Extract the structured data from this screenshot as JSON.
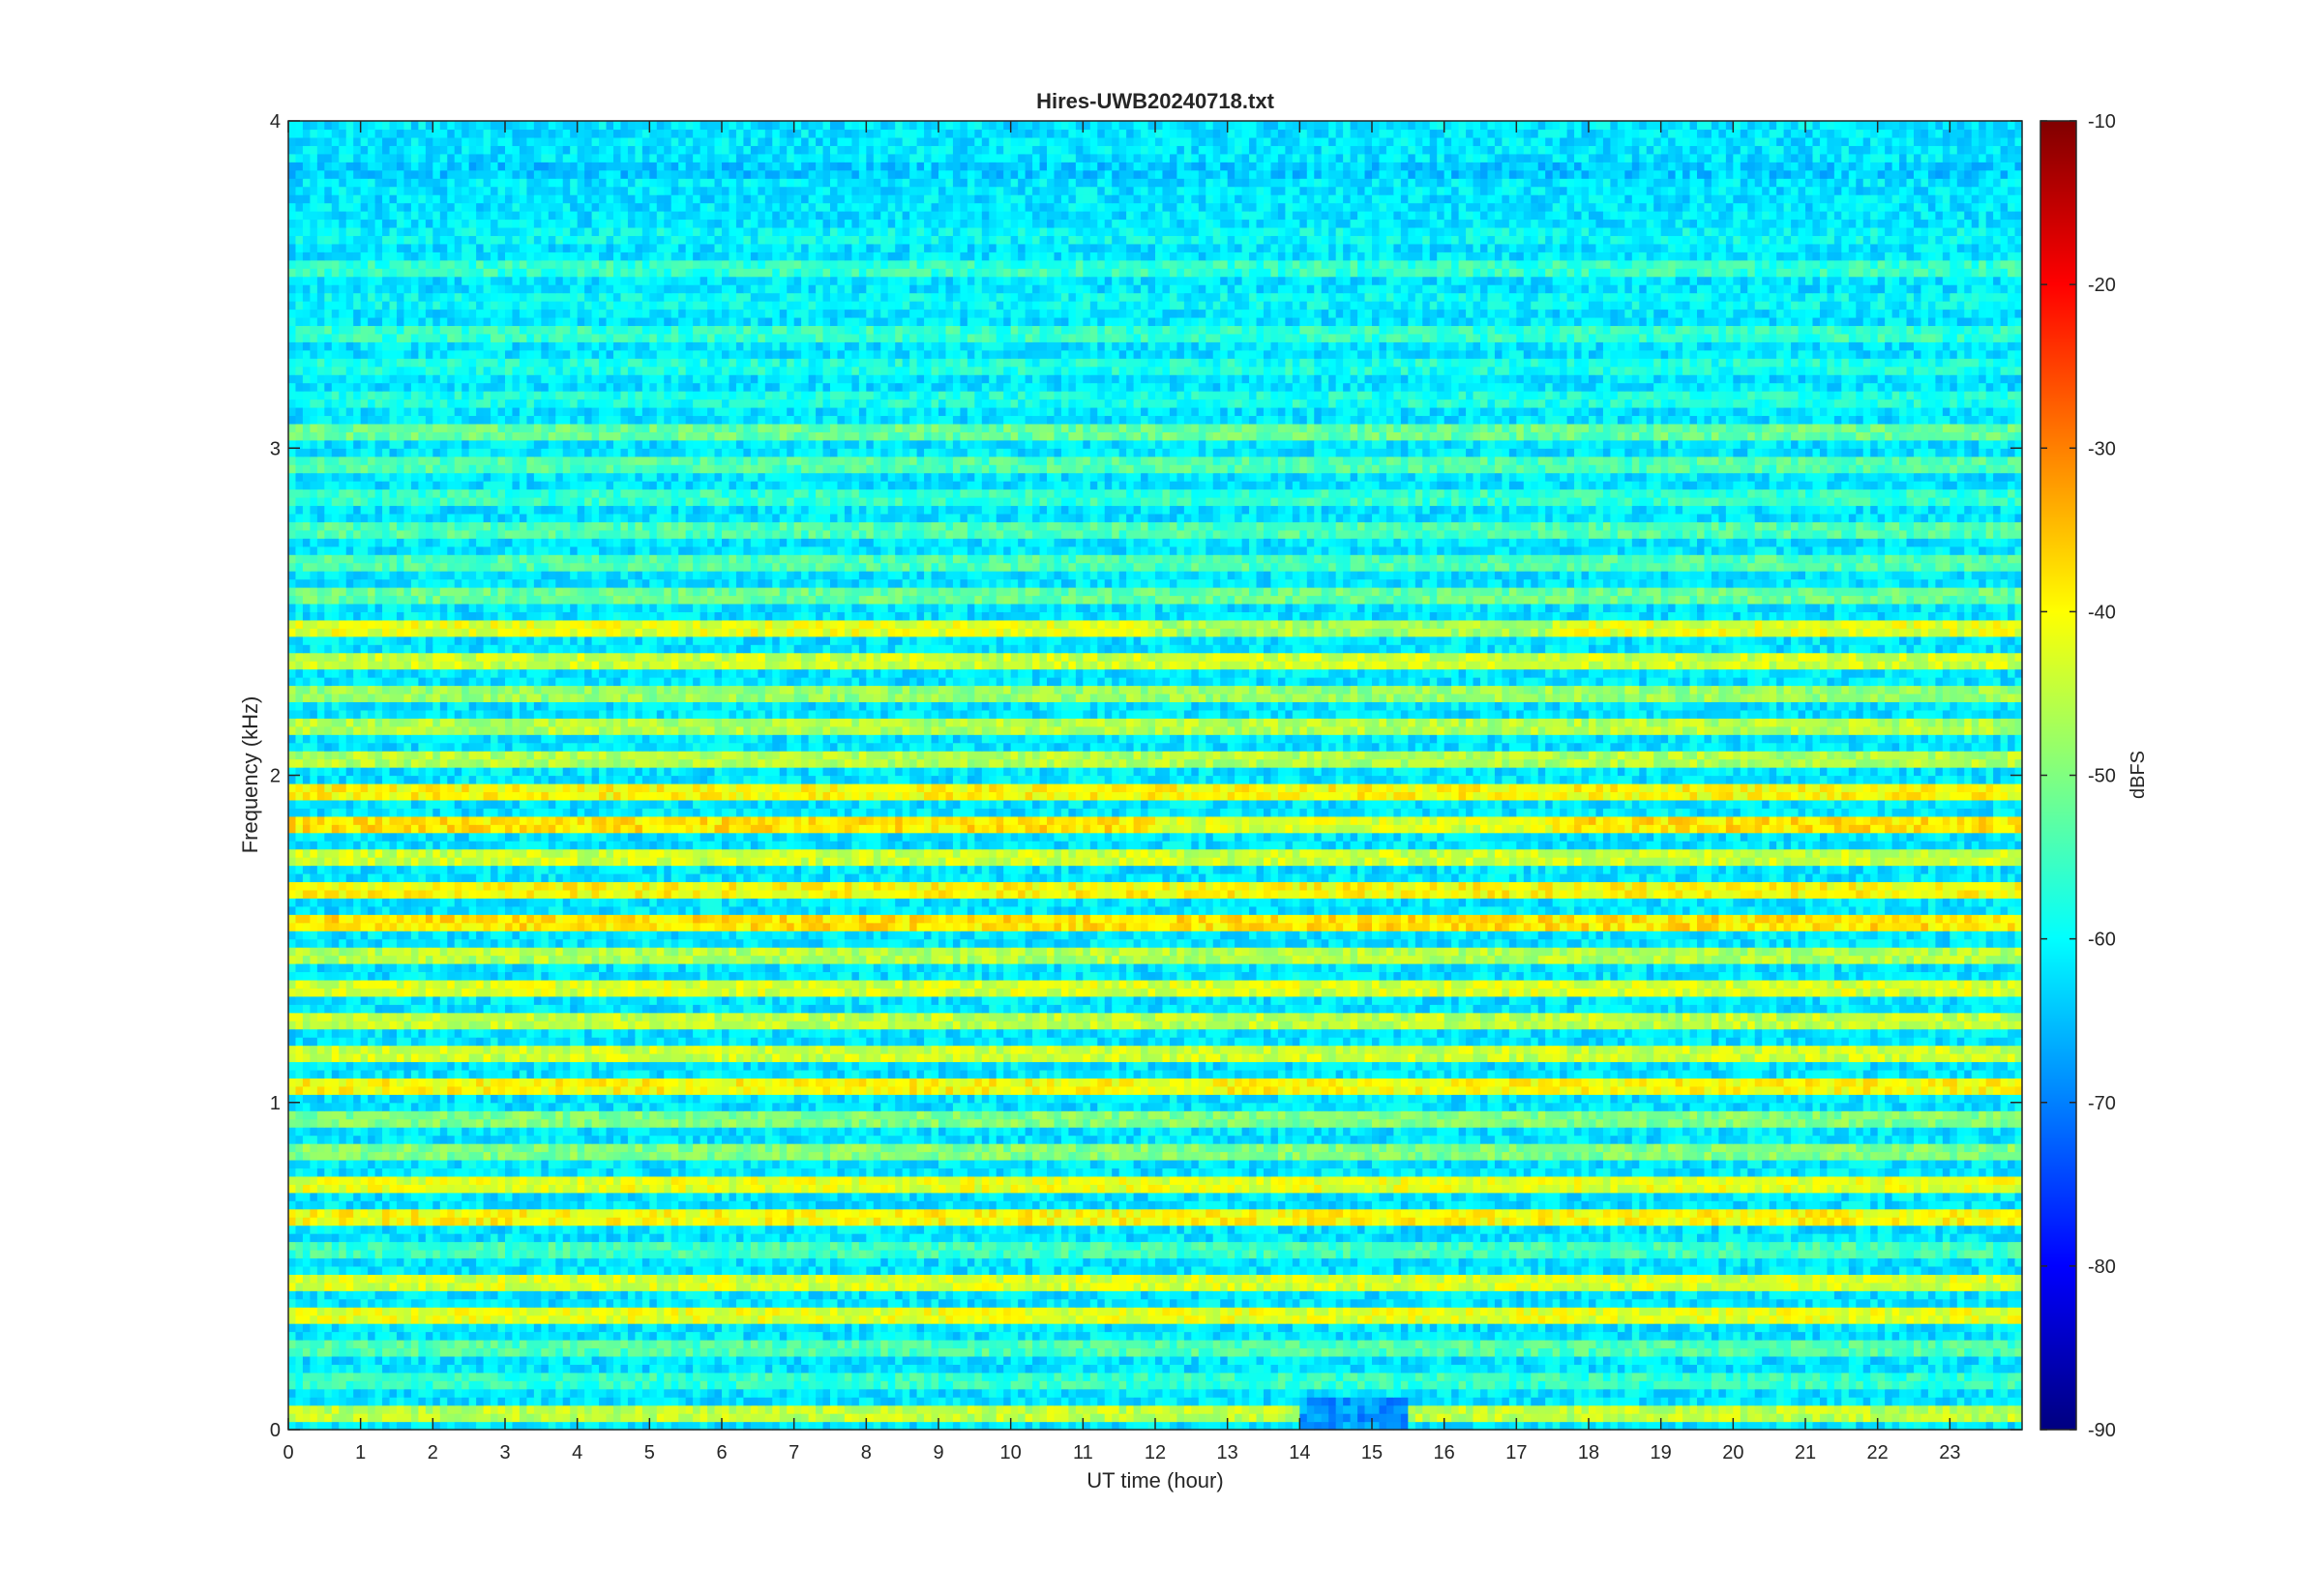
{
  "chart_data": {
    "type": "heatmap",
    "title": "Hires-UWB20240718.txt",
    "xlabel": "UT time (hour)",
    "ylabel": "Frequency (kHz)",
    "xlim": [
      0,
      24
    ],
    "ylim": [
      0,
      4
    ],
    "x_ticks": [
      "0",
      "1",
      "2",
      "3",
      "4",
      "5",
      "6",
      "7",
      "8",
      "9",
      "10",
      "11",
      "12",
      "13",
      "14",
      "15",
      "16",
      "17",
      "18",
      "19",
      "20",
      "21",
      "22",
      "23"
    ],
    "y_ticks": [
      "0",
      "1",
      "2",
      "3",
      "4"
    ],
    "colorbar": {
      "label": "dBFS",
      "range": [
        -90,
        -10
      ],
      "ticks": [
        "-10",
        "-20",
        "-30",
        "-40",
        "-50",
        "-60",
        "-70",
        "-80",
        "-90"
      ],
      "colormap": "jet"
    },
    "grid": false,
    "description_levels": {
      "background_dbfs": -62,
      "frequency_bands_khz": [
        0.05,
        0.15,
        0.25,
        0.35,
        0.45,
        0.55,
        0.65,
        0.75,
        0.85,
        0.95,
        1.05,
        1.15,
        1.25,
        1.35,
        1.45,
        1.55,
        1.65,
        1.75,
        1.85,
        1.95,
        2.05,
        2.15,
        2.25,
        2.35,
        2.45,
        2.55,
        2.65,
        2.75,
        2.85,
        2.95,
        3.05,
        3.15,
        3.25,
        3.35,
        3.45,
        3.55,
        3.65,
        3.75,
        3.85,
        3.95
      ],
      "band_peak_dbfs": [
        -45,
        -56,
        -54,
        -42,
        -43,
        -55,
        -40,
        -42,
        -50,
        -50,
        -40,
        -44,
        -45,
        -43,
        -46,
        -38,
        -40,
        -44,
        -38,
        -40,
        -46,
        -46,
        -48,
        -44,
        -42,
        -52,
        -54,
        -54,
        -56,
        -54,
        -52,
        -58,
        -58,
        -56,
        -60,
        -56,
        -60,
        -62,
        -64,
        -62
      ]
    }
  }
}
